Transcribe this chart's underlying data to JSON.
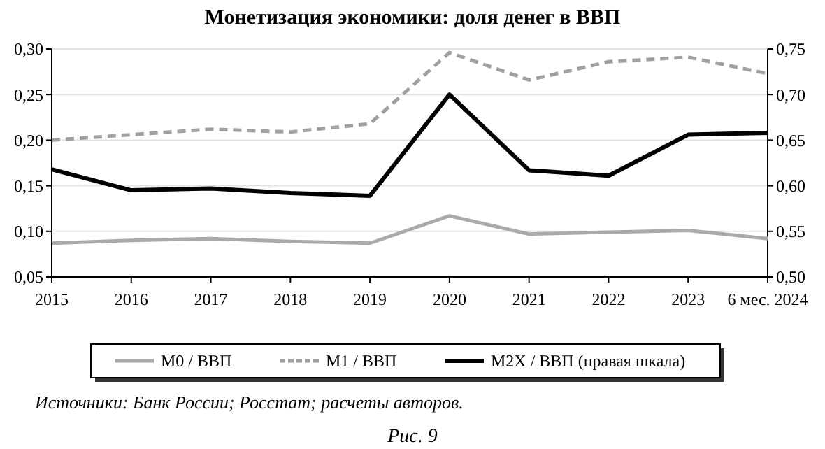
{
  "chart_data": {
    "type": "line",
    "title": "Монетизация экономики: доля денег в ВВП",
    "categories": [
      "2015",
      "2016",
      "2017",
      "2018",
      "2019",
      "2020",
      "2021",
      "2022",
      "2023",
      "6 мес. 2024"
    ],
    "series": [
      {
        "name": "М0 / ВВП",
        "color": "#aaaaaa",
        "line_style": "solid",
        "values": [
          0.087,
          0.09,
          0.092,
          0.089,
          0.087,
          0.117,
          0.097,
          0.099,
          0.101,
          0.092
        ]
      },
      {
        "name": "М1 / ВВП",
        "color": "#a0a0a0",
        "line_style": "dashed",
        "values": [
          0.2,
          0.206,
          0.212,
          0.209,
          0.218,
          0.296,
          0.266,
          0.286,
          0.291,
          0.273
        ]
      },
      {
        "name": "М2Х / ВВП (правая шкала)",
        "color": "#000000",
        "line_style": "solid",
        "axis": "y2",
        "values": [
          0.618,
          0.595,
          0.597,
          0.592,
          0.589,
          0.7,
          0.617,
          0.611,
          0.656,
          0.658
        ]
      }
    ],
    "ylim": [
      0.05,
      0.3
    ],
    "yticks": [
      {
        "value": 0.05,
        "label": "0,05"
      },
      {
        "value": 0.1,
        "label": "0,10"
      },
      {
        "value": 0.15,
        "label": "0,15"
      },
      {
        "value": 0.2,
        "label": "0,20"
      },
      {
        "value": 0.25,
        "label": "0,25"
      },
      {
        "value": 0.3,
        "label": "0,30"
      }
    ],
    "y2lim": [
      0.5,
      0.75
    ],
    "y2ticks": [
      {
        "value": 0.5,
        "label": "0,50"
      },
      {
        "value": 0.55,
        "label": "0,55"
      },
      {
        "value": 0.6,
        "label": "0,60"
      },
      {
        "value": 0.65,
        "label": "0,65"
      },
      {
        "value": 0.7,
        "label": "0,70"
      },
      {
        "value": 0.75,
        "label": "0,75"
      }
    ],
    "grid": "y",
    "legend": "bottom",
    "marker": "none",
    "annotations": [
      "Источники: Банк России; Росстат; расчеты авторов.",
      "Рис. 9"
    ]
  }
}
